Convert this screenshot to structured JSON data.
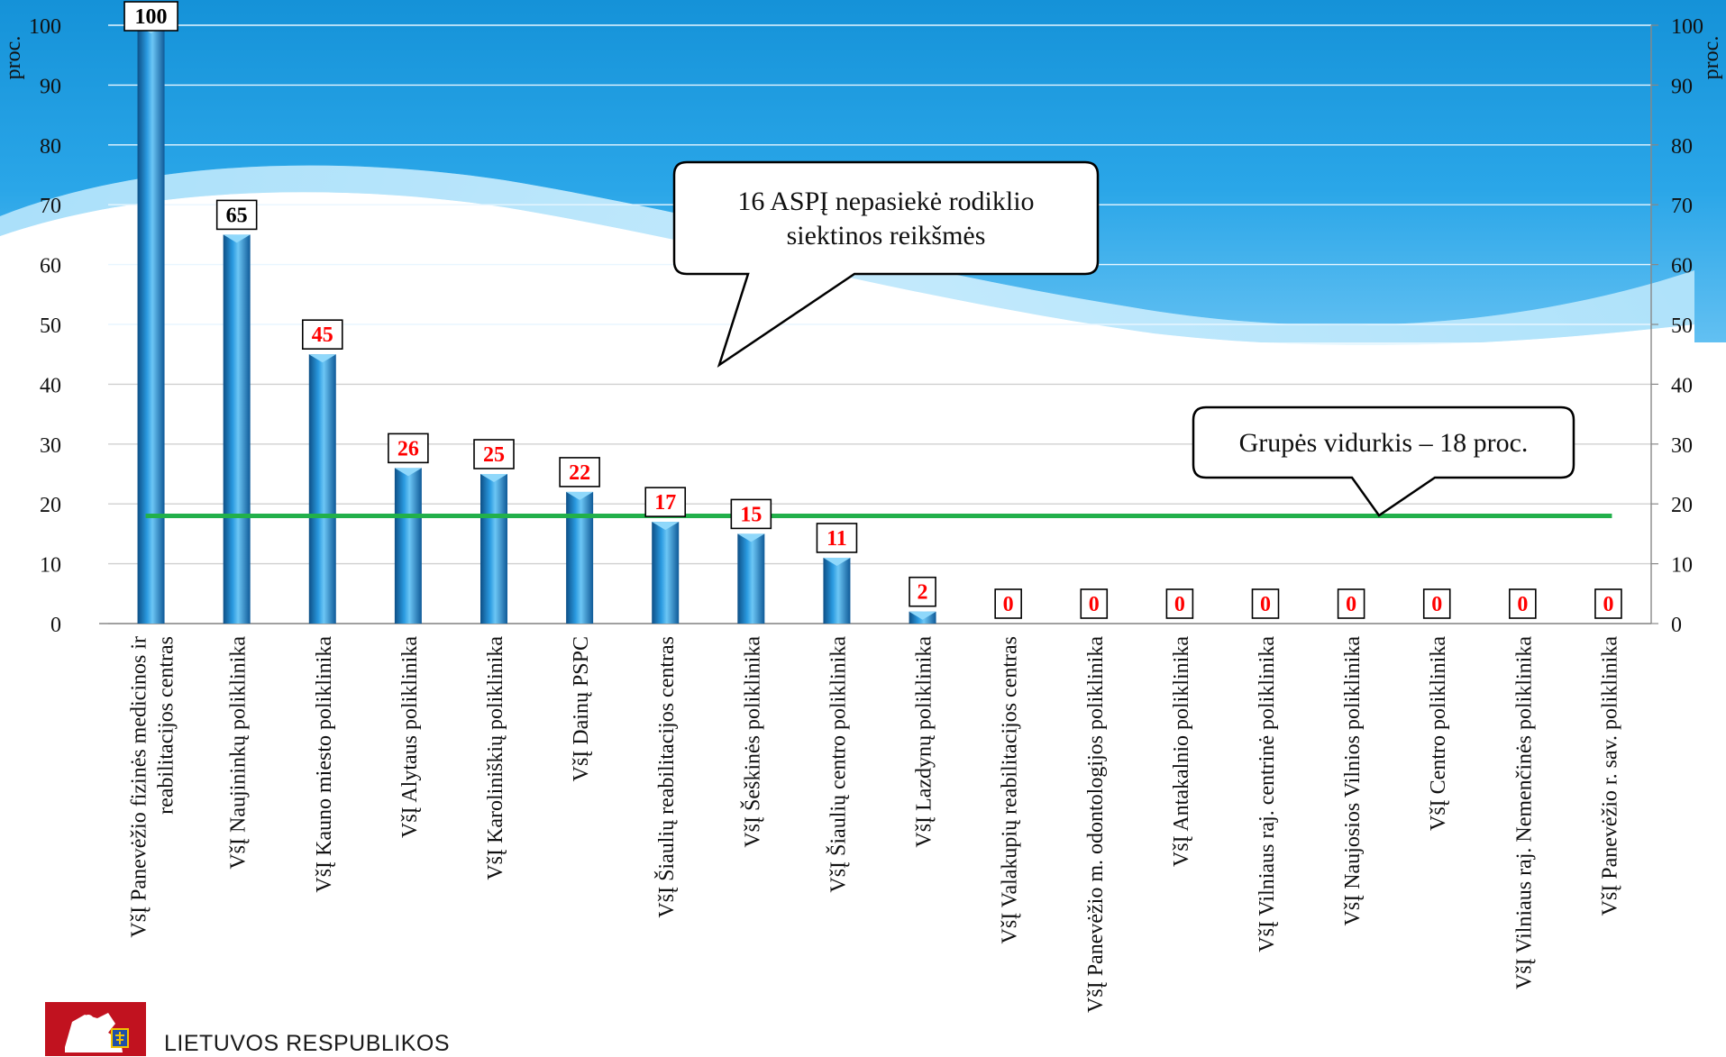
{
  "chart_data": {
    "type": "bar",
    "title": "",
    "xlabel": "",
    "ylabel_left": "proc.",
    "ylabel_right": "proc.",
    "ylim": [
      0,
      100
    ],
    "yticks": [
      0,
      10,
      20,
      30,
      40,
      50,
      60,
      70,
      80,
      90,
      100
    ],
    "grid": true,
    "categories": [
      [
        "VšĮ Panevėžio fizinės medicinos ir",
        "reabilitacijos centras"
      ],
      [
        "VšĮ Naujininkų poliklinika"
      ],
      [
        "VšĮ Kauno miesto poliklinika"
      ],
      [
        "VšĮ Alytaus poliklinika"
      ],
      [
        "VšĮ Karoliniškių poliklinika"
      ],
      [
        "VšĮ Dainų PSPC"
      ],
      [
        "VšĮ Šiaulių reabilitacijos centras"
      ],
      [
        "VšĮ Šeškinės poliklinika"
      ],
      [
        "VšĮ Šiaulių centro poliklinika"
      ],
      [
        "VšĮ Lazdynų poliklinika"
      ],
      [
        "VšĮ Valakupių reabilitacijos centras"
      ],
      [
        "VšĮ Panevėžio m. odontologijos poliklinika"
      ],
      [
        "VšĮ Antakalnio poliklinika"
      ],
      [
        "VšĮ Vilniaus raj. centrinė poliklinika"
      ],
      [
        "VšĮ Naujosios Vilnios poliklinika"
      ],
      [
        "VšĮ Centro poliklinika"
      ],
      [
        "VšĮ Vilniaus raj. Nemenčinės poliklinika"
      ],
      [
        "VšĮ Panevėžio r. sav. poliklinika"
      ]
    ],
    "values": [
      100,
      65,
      45,
      26,
      25,
      22,
      17,
      15,
      11,
      2,
      0,
      0,
      0,
      0,
      0,
      0,
      0,
      0
    ],
    "label_colors": [
      "#000000",
      "#000000",
      "#ff0000",
      "#ff0000",
      "#ff0000",
      "#ff0000",
      "#ff0000",
      "#ff0000",
      "#ff0000",
      "#ff0000",
      "#ff0000",
      "#ff0000",
      "#ff0000",
      "#ff0000",
      "#ff0000",
      "#ff0000",
      "#ff0000",
      "#ff0000"
    ],
    "reference_line": {
      "value": 18,
      "color": "#22b04b"
    },
    "annotations": [
      {
        "lines": [
          "16 ASPĮ nepasiekė rodiklio",
          "siektinos reikšmės"
        ]
      },
      {
        "lines": [
          "Grupės vidurkis – 18 proc."
        ]
      }
    ],
    "colors": {
      "bar": "#1e88d2",
      "bar_dark": "#0d4f86",
      "bar_light": "#6cc6f5",
      "background_top": "#1a96dc",
      "background_light": "#a9dcfa",
      "grid": "#ffffff"
    }
  },
  "footer": {
    "organization": "LIETUVOS RESPUBLIKOS",
    "crest_icon": "coat-of-arms-icon"
  }
}
